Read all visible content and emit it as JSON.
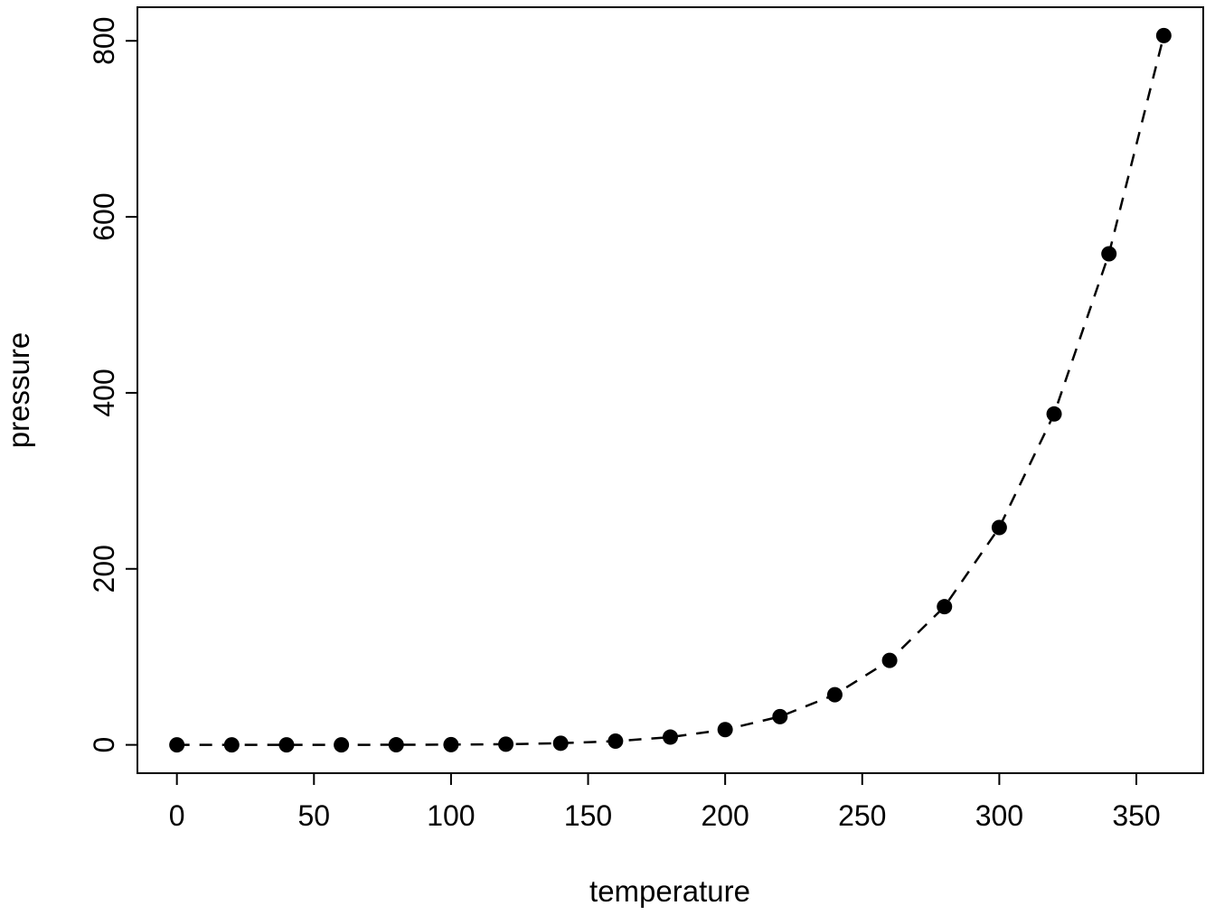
{
  "chart_data": {
    "type": "line",
    "title": "",
    "xlabel": "temperature",
    "ylabel": "pressure",
    "x": [
      0,
      20,
      40,
      60,
      80,
      100,
      120,
      140,
      160,
      180,
      200,
      220,
      240,
      260,
      280,
      300,
      320,
      340,
      360
    ],
    "y": [
      0.0002,
      0.0012,
      0.006,
      0.03,
      0.09,
      0.27,
      0.75,
      1.85,
      4.2,
      8.8,
      17.3,
      32.1,
      57,
      96,
      157,
      247,
      376,
      558,
      806
    ],
    "xticks": [
      0,
      50,
      100,
      150,
      200,
      250,
      300,
      350
    ],
    "yticks": [
      0,
      200,
      400,
      600,
      800
    ],
    "xlim": [
      -14.4,
      374.4
    ],
    "ylim": [
      -32.2,
      838.2
    ],
    "grid": false,
    "legend": "none",
    "line_style": "dashed",
    "point_style": "filled-circle",
    "color": "#000000",
    "background": "#ffffff"
  }
}
